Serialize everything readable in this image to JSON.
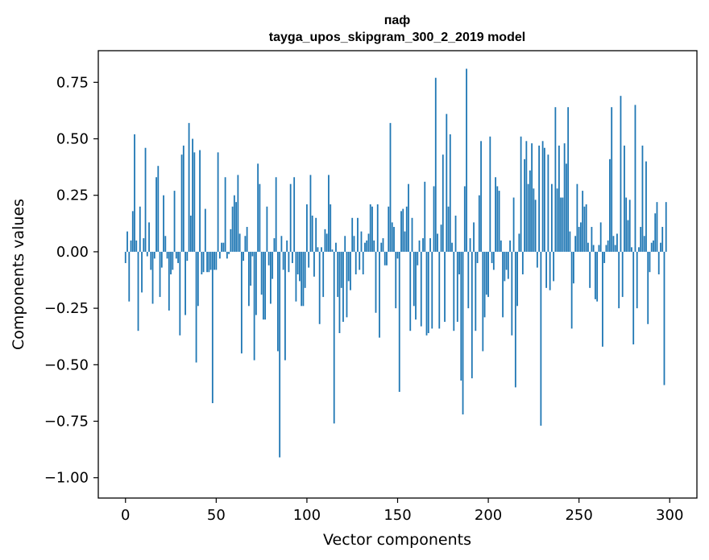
{
  "chart_data": {
    "type": "bar",
    "title": "паф",
    "subtitle": "tayga_upos_skipgram_300_2_2019 model",
    "xlabel": "Vector components",
    "ylabel": "Components values",
    "xlim": [
      -15,
      315
    ],
    "ylim": [
      -1.09,
      0.89
    ],
    "xticks": [
      0,
      50,
      100,
      150,
      200,
      250,
      300
    ],
    "xtick_labels": [
      "0",
      "50",
      "100",
      "150",
      "200",
      "250",
      "300"
    ],
    "yticks": [
      0.75,
      0.5,
      0.25,
      0.0,
      -0.25,
      -0.5,
      -0.75,
      -1.0
    ],
    "ytick_labels": [
      "0.75",
      "0.50",
      "0.25",
      "0.00",
      "−0.25",
      "−0.50",
      "−0.75",
      "−1.00"
    ],
    "grid": false,
    "legend": "none",
    "bar_color": "#1f77b4",
    "values": [
      -0.05,
      0.09,
      -0.22,
      0.05,
      0.18,
      0.52,
      0.05,
      -0.35,
      0.2,
      -0.18,
      0.06,
      0.46,
      -0.02,
      0.13,
      -0.08,
      -0.23,
      -0.03,
      0.33,
      0.38,
      -0.2,
      -0.07,
      0.25,
      0.07,
      -0.03,
      -0.26,
      -0.1,
      -0.08,
      0.27,
      -0.03,
      -0.05,
      -0.37,
      0.43,
      0.47,
      -0.28,
      -0.04,
      0.57,
      0.16,
      0.5,
      0.44,
      -0.49,
      -0.24,
      0.45,
      -0.1,
      -0.09,
      0.19,
      -0.09,
      -0.09,
      -0.08,
      -0.67,
      -0.08,
      -0.08,
      0.44,
      -0.03,
      0.04,
      0.04,
      0.33,
      -0.03,
      -0.01,
      0.1,
      0.2,
      0.25,
      0.22,
      0.34,
      0.08,
      -0.45,
      -0.04,
      0.07,
      0.11,
      -0.24,
      -0.15,
      -0.02,
      -0.48,
      -0.28,
      0.39,
      0.3,
      -0.19,
      -0.3,
      -0.3,
      0.2,
      -0.06,
      -0.23,
      -0.12,
      0.06,
      0.33,
      -0.44,
      -0.91,
      0.07,
      -0.08,
      -0.48,
      0.05,
      -0.09,
      0.3,
      -0.05,
      0.33,
      -0.22,
      -0.1,
      -0.13,
      -0.24,
      -0.24,
      -0.16,
      0.21,
      -0.07,
      0.34,
      0.16,
      -0.11,
      0.15,
      0.02,
      -0.32,
      0.02,
      -0.2,
      0.1,
      0.08,
      0.34,
      0.21,
      0.01,
      -0.76,
      0.04,
      -0.2,
      -0.36,
      -0.16,
      -0.31,
      0.07,
      -0.29,
      -0.13,
      -0.17,
      0.15,
      0.07,
      -0.1,
      0.15,
      -0.08,
      0.09,
      -0.1,
      0.04,
      0.05,
      0.08,
      0.21,
      0.2,
      0.05,
      -0.27,
      0.21,
      -0.38,
      0.04,
      0.06,
      -0.06,
      -0.06,
      0.2,
      0.57,
      0.13,
      0.11,
      -0.25,
      -0.03,
      -0.62,
      0.18,
      0.19,
      0.09,
      0.2,
      0.3,
      -0.35,
      0.15,
      -0.24,
      -0.3,
      -0.06,
      0.05,
      -0.33,
      0.06,
      0.31,
      -0.37,
      -0.36,
      0.06,
      -0.34,
      0.29,
      0.77,
      0.08,
      -0.34,
      0.12,
      0.43,
      -0.31,
      0.61,
      0.2,
      0.52,
      0.04,
      -0.35,
      0.16,
      -0.31,
      -0.1,
      -0.57,
      -0.72,
      0.29,
      0.81,
      -0.25,
      0.06,
      -0.56,
      0.13,
      -0.35,
      -0.05,
      0.25,
      0.49,
      -0.44,
      -0.29,
      -0.19,
      -0.2,
      0.51,
      -0.05,
      -0.08,
      0.33,
      0.29,
      0.27,
      0.05,
      -0.29,
      -0.13,
      -0.08,
      -0.12,
      0.05,
      -0.37,
      0.24,
      -0.6,
      -0.24,
      0.08,
      0.51,
      -0.1,
      0.41,
      0.49,
      0.3,
      0.36,
      0.48,
      0.28,
      0.23,
      -0.07,
      0.47,
      -0.77,
      0.49,
      0.46,
      -0.16,
      0.43,
      -0.17,
      0.3,
      -0.13,
      0.64,
      0.28,
      0.47,
      0.24,
      0.24,
      0.48,
      0.39,
      0.64,
      0.09,
      -0.34,
      -0.14,
      0.07,
      0.3,
      0.11,
      0.13,
      0.27,
      0.2,
      0.21,
      0.04,
      -0.16,
      0.11,
      0.03,
      -0.21,
      -0.22,
      0.03,
      0.13,
      -0.42,
      -0.05,
      0.03,
      0.05,
      0.41,
      0.64,
      0.07,
      0.03,
      0.08,
      -0.25,
      0.69,
      -0.2,
      0.47,
      0.24,
      0.14,
      0.23,
      0.02,
      -0.41,
      0.65,
      -0.25,
      0.02,
      0.11,
      0.47,
      0.07,
      0.4,
      -0.32,
      -0.09,
      0.04,
      0.05,
      0.17,
      0.22,
      -0.1,
      0.04,
      0.11,
      -0.59,
      0.22
    ]
  }
}
